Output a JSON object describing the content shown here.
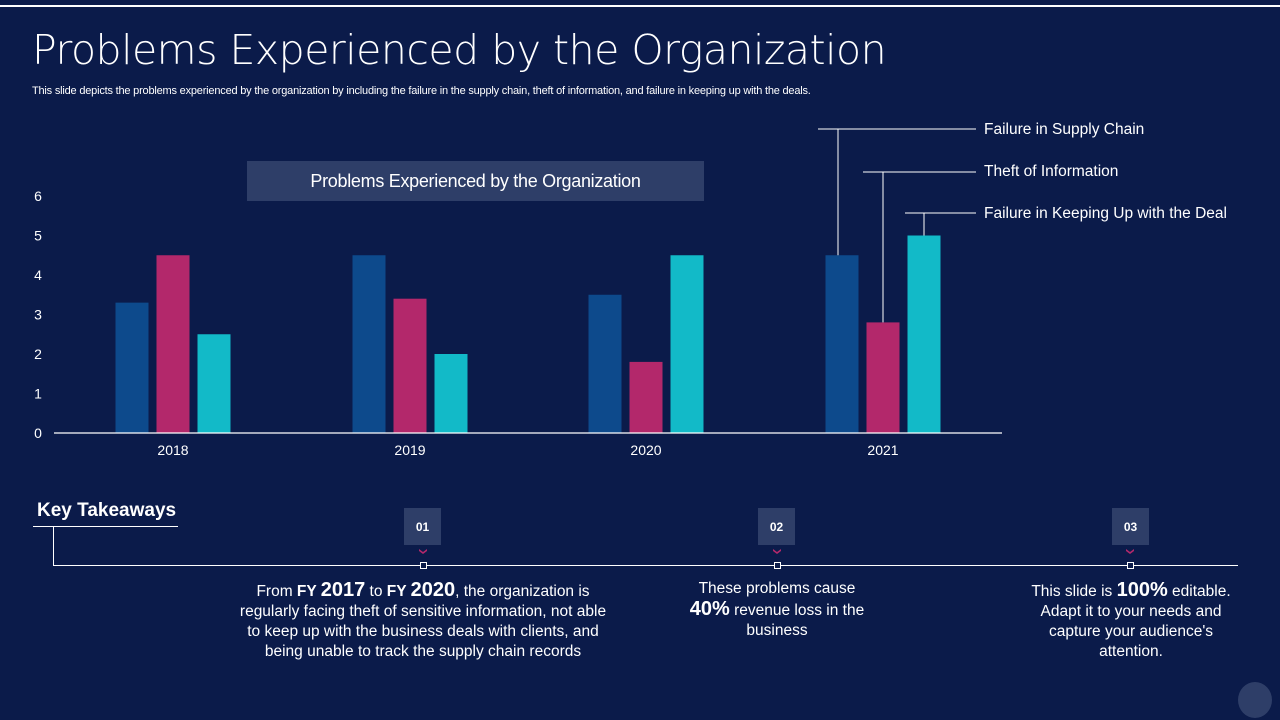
{
  "slide": {
    "title": "Problems Experienced by the Organization",
    "subtitle": "This slide depicts the problems experienced by the organization by including the failure in the supply chain, theft of information, and failure in keeping up with the deals."
  },
  "colors": {
    "background": "#0b1b4a",
    "series_supply_chain": "#0d4a8c",
    "series_theft": "#b3286b",
    "series_deal": "#12bac8",
    "panel": "#2e3e68",
    "accent_chevron": "#b3286b"
  },
  "chart_data": {
    "type": "bar",
    "title": "Problems Experienced by the Organization",
    "xlabel": "",
    "ylabel": "",
    "categories": [
      "2018",
      "2019",
      "2020",
      "2021"
    ],
    "series": [
      {
        "name": "Failure in Supply Chain",
        "values": [
          3.3,
          4.5,
          3.5,
          4.5
        ]
      },
      {
        "name": "Theft of Information",
        "values": [
          4.5,
          3.4,
          1.8,
          2.8
        ]
      },
      {
        "name": "Failure in Keeping Up with the Deal",
        "values": [
          2.5,
          2.0,
          4.5,
          5.0
        ]
      }
    ],
    "ylim": [
      0,
      6
    ],
    "yticks": [
      "0",
      "1",
      "2",
      "3",
      "4",
      "5",
      "6"
    ],
    "grid": false,
    "legend": "right (callout lines to 2021 bars)"
  },
  "key_takeaways": {
    "title": "Key Takeaways",
    "items": [
      {
        "number": "01",
        "parts": [
          {
            "t": "From ",
            "s": "normal"
          },
          {
            "t": "FY ",
            "s": "bold"
          },
          {
            "t": "2017",
            "s": "big"
          },
          {
            "t": " to ",
            "s": "normal"
          },
          {
            "t": "FY ",
            "s": "bold"
          },
          {
            "t": "2020",
            "s": "big"
          },
          {
            "t": ", the organization is regularly facing theft of sensitive information, not able to keep up with the business deals with clients, and being unable to track the supply chain records",
            "s": "normal"
          }
        ]
      },
      {
        "number": "02",
        "parts": [
          {
            "t": "These problems cause ",
            "s": "normal"
          },
          {
            "t": "40%",
            "s": "big"
          },
          {
            "t": " revenue loss in the business",
            "s": "normal"
          }
        ]
      },
      {
        "number": "03",
        "parts": [
          {
            "t": "This slide is ",
            "s": "normal"
          },
          {
            "t": "100%",
            "s": "big"
          },
          {
            "t": " editable. Adapt it to your needs and capture your audience's attention.",
            "s": "normal"
          }
        ]
      }
    ]
  }
}
